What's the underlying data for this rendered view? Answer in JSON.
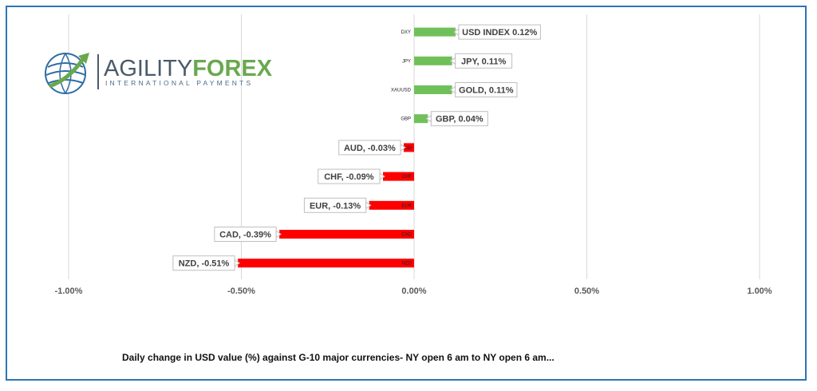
{
  "logo": {
    "word_part1": "AGILITY",
    "word_part2": "FOREX",
    "tagline": "INTERNATIONAL PAYMENTS",
    "colors": {
      "primary": "#4a5a6a",
      "accent": "#6aa84f",
      "globe": "#2e6da4"
    }
  },
  "caption": "Daily change in  USD value (%)  against  G-10 major currencies- NY open 6 am to NY open 6 am...",
  "chart_data": {
    "type": "bar",
    "orientation": "horizontal",
    "categories": [
      "DXY",
      "JPY",
      "XAUUSD",
      "GBP",
      "AUD",
      "CHF",
      "EUR",
      "CAD",
      "NZD"
    ],
    "values": [
      0.12,
      0.11,
      0.11,
      0.04,
      -0.03,
      -0.09,
      -0.13,
      -0.39,
      -0.51
    ],
    "data_labels": [
      "USD INDEX 0.12%",
      "JPY, 0.11%",
      "GOLD, 0.11%",
      "GBP, 0.04%",
      "AUD, -0.03%",
      "CHF, -0.09%",
      "EUR, -0.13%",
      "CAD, -0.39%",
      "NZD, -0.51%"
    ],
    "xlim": [
      -1.0,
      1.0
    ],
    "x_ticks": [
      -1.0,
      -0.5,
      0.0,
      0.5,
      1.0
    ],
    "x_tick_labels": [
      "-1.00%",
      "-0.50%",
      "0.00%",
      "0.50%",
      "1.00%"
    ],
    "grid": true,
    "legend": "none",
    "colors": {
      "positive": "#70c05a",
      "negative": "#ff0000",
      "grid": "#d9d9d9",
      "border": "#2e75b6"
    }
  }
}
